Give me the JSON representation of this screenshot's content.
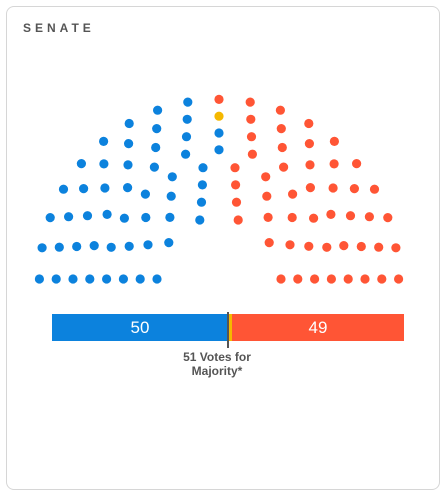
{
  "card": {
    "title": "SENATE"
  },
  "chart_data": {
    "type": "hemicycle",
    "title": "SENATE",
    "total_seats": 100,
    "majority_threshold": 51,
    "series": [
      {
        "name": "",
        "values": [
          50
        ],
        "color": "#0c82dd"
      },
      {
        "name": "",
        "values": [
          1
        ],
        "color": "#f5b800"
      },
      {
        "name": "",
        "values": [
          49
        ],
        "color": "#ff5535"
      }
    ],
    "bar_labels": [
      "50",
      "49"
    ],
    "majority_label_line1": "51 Votes for",
    "majority_label_line2": "Majority*"
  },
  "colors": {
    "blue": "#0c82dd",
    "yellow": "#f5b800",
    "red": "#ff5535",
    "divider": "#555555"
  }
}
